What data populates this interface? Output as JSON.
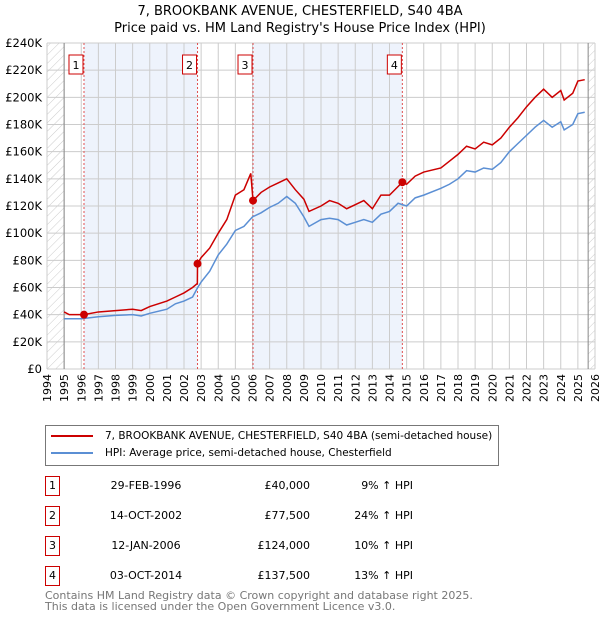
{
  "chart_data": {
    "type": "line",
    "title": "7, BROOKBANK AVENUE, CHESTERFIELD, S40 4BA",
    "subtitle": "Price paid vs. HM Land Registry's House Price Index (HPI)",
    "xlim": [
      1994,
      2026
    ],
    "ylim": [
      0,
      240000
    ],
    "x_ticks": [
      "1994",
      "1995",
      "1996",
      "1997",
      "1998",
      "1999",
      "2000",
      "2001",
      "2002",
      "2003",
      "2004",
      "2005",
      "2006",
      "2007",
      "2008",
      "2009",
      "2010",
      "2011",
      "2012",
      "2013",
      "2014",
      "2015",
      "2016",
      "2017",
      "2018",
      "2019",
      "2020",
      "2021",
      "2022",
      "2023",
      "2024",
      "2025",
      "2026"
    ],
    "y_ticks": [
      "£0",
      "£20K",
      "£40K",
      "£60K",
      "£80K",
      "£100K",
      "£120K",
      "£140K",
      "£160K",
      "£180K",
      "£200K",
      "£220K",
      "£240K"
    ],
    "grid": true,
    "series": [
      {
        "name": "7, BROOKBANK AVENUE, CHESTERFIELD, S40 4BA (semi-detached house)",
        "color": "#cc0000",
        "points": [
          [
            1995,
            42
          ],
          [
            1995.3,
            40
          ],
          [
            1996.16,
            40
          ],
          [
            1997,
            42
          ],
          [
            1998,
            43
          ],
          [
            1999,
            44
          ],
          [
            1999.5,
            43
          ],
          [
            2000,
            46
          ],
          [
            2001,
            50
          ],
          [
            2001.5,
            53
          ],
          [
            2002,
            56
          ],
          [
            2002.5,
            60
          ],
          [
            2002.78,
            63
          ],
          [
            2002.79,
            77.5
          ],
          [
            2003,
            82
          ],
          [
            2003.5,
            89
          ],
          [
            2004,
            100
          ],
          [
            2004.5,
            110
          ],
          [
            2005,
            128
          ],
          [
            2005.5,
            132
          ],
          [
            2005.9,
            144
          ],
          [
            2006.03,
            124
          ],
          [
            2006.5,
            130
          ],
          [
            2007,
            134
          ],
          [
            2007.5,
            137
          ],
          [
            2008,
            140
          ],
          [
            2008.5,
            132
          ],
          [
            2009,
            125
          ],
          [
            2009.3,
            116
          ],
          [
            2010,
            120
          ],
          [
            2010.5,
            124
          ],
          [
            2011,
            122
          ],
          [
            2011.5,
            118
          ],
          [
            2012,
            121
          ],
          [
            2012.5,
            124
          ],
          [
            2013,
            118
          ],
          [
            2013.5,
            128
          ],
          [
            2014,
            128
          ],
          [
            2014.75,
            137.5
          ],
          [
            2015,
            136
          ],
          [
            2015.5,
            142
          ],
          [
            2016,
            145
          ],
          [
            2017,
            148
          ],
          [
            2017.5,
            153
          ],
          [
            2018,
            158
          ],
          [
            2018.5,
            164
          ],
          [
            2019,
            162
          ],
          [
            2019.5,
            167
          ],
          [
            2020,
            165
          ],
          [
            2020.5,
            170
          ],
          [
            2021,
            178
          ],
          [
            2021.5,
            185
          ],
          [
            2022,
            193
          ],
          [
            2022.5,
            200
          ],
          [
            2023,
            206
          ],
          [
            2023.5,
            200
          ],
          [
            2024,
            205
          ],
          [
            2024.2,
            198
          ],
          [
            2024.7,
            203
          ],
          [
            2025,
            212
          ],
          [
            2025.4,
            213
          ]
        ]
      },
      {
        "name": "HPI: Average price, semi-detached house, Chesterfield",
        "color": "#5b8fd4",
        "points": [
          [
            1995,
            37
          ],
          [
            1996,
            37
          ],
          [
            1997,
            38.5
          ],
          [
            1998,
            39.5
          ],
          [
            1999,
            40
          ],
          [
            1999.5,
            39
          ],
          [
            2000,
            41
          ],
          [
            2001,
            44
          ],
          [
            2001.5,
            48
          ],
          [
            2002,
            50
          ],
          [
            2002.5,
            53
          ],
          [
            2002.8,
            60
          ],
          [
            2003,
            64
          ],
          [
            2003.5,
            72
          ],
          [
            2004,
            84
          ],
          [
            2004.5,
            92
          ],
          [
            2005,
            102
          ],
          [
            2005.5,
            105
          ],
          [
            2006,
            112
          ],
          [
            2006.5,
            115
          ],
          [
            2007,
            119
          ],
          [
            2007.5,
            122
          ],
          [
            2008,
            127
          ],
          [
            2008.5,
            122
          ],
          [
            2009,
            112
          ],
          [
            2009.3,
            105
          ],
          [
            2010,
            110
          ],
          [
            2010.5,
            111
          ],
          [
            2011,
            110
          ],
          [
            2011.5,
            106
          ],
          [
            2012,
            108
          ],
          [
            2012.5,
            110
          ],
          [
            2013,
            108
          ],
          [
            2013.5,
            114
          ],
          [
            2014,
            116
          ],
          [
            2014.5,
            122
          ],
          [
            2015,
            120
          ],
          [
            2015.5,
            126
          ],
          [
            2016,
            128
          ],
          [
            2017,
            133
          ],
          [
            2017.5,
            136
          ],
          [
            2018,
            140
          ],
          [
            2018.5,
            146
          ],
          [
            2019,
            145
          ],
          [
            2019.5,
            148
          ],
          [
            2020,
            147
          ],
          [
            2020.5,
            152
          ],
          [
            2021,
            160
          ],
          [
            2021.5,
            166
          ],
          [
            2022,
            172
          ],
          [
            2022.5,
            178
          ],
          [
            2023,
            183
          ],
          [
            2023.5,
            178
          ],
          [
            2024,
            182
          ],
          [
            2024.2,
            176
          ],
          [
            2024.7,
            180
          ],
          [
            2025,
            188
          ],
          [
            2025.4,
            189
          ]
        ]
      }
    ],
    "sales": [
      {
        "n": "1",
        "x": 2,
        "year": 1996.16,
        "price": 40
      },
      {
        "n": "2",
        "year": 2002.79,
        "price": 77.5
      },
      {
        "n": "3",
        "year": 2006.03,
        "price": 124
      },
      {
        "n": "4",
        "year": 2014.75,
        "price": 137.5
      }
    ],
    "legend_position": "below"
  },
  "transactions": [
    {
      "n": "1",
      "date": "29-FEB-1996",
      "price": "£40,000",
      "hpi": "9% ↑ HPI"
    },
    {
      "n": "2",
      "date": "14-OCT-2002",
      "price": "£77,500",
      "hpi": "24% ↑ HPI"
    },
    {
      "n": "3",
      "date": "12-JAN-2006",
      "price": "£124,000",
      "hpi": "10% ↑ HPI"
    },
    {
      "n": "4",
      "date": "03-OCT-2014",
      "price": "£137,500",
      "hpi": "13% ↑ HPI"
    }
  ],
  "footer": [
    "Contains HM Land Registry data © Crown copyright and database right 2025.",
    "This data is licensed under the Open Government Licence v3.0."
  ]
}
